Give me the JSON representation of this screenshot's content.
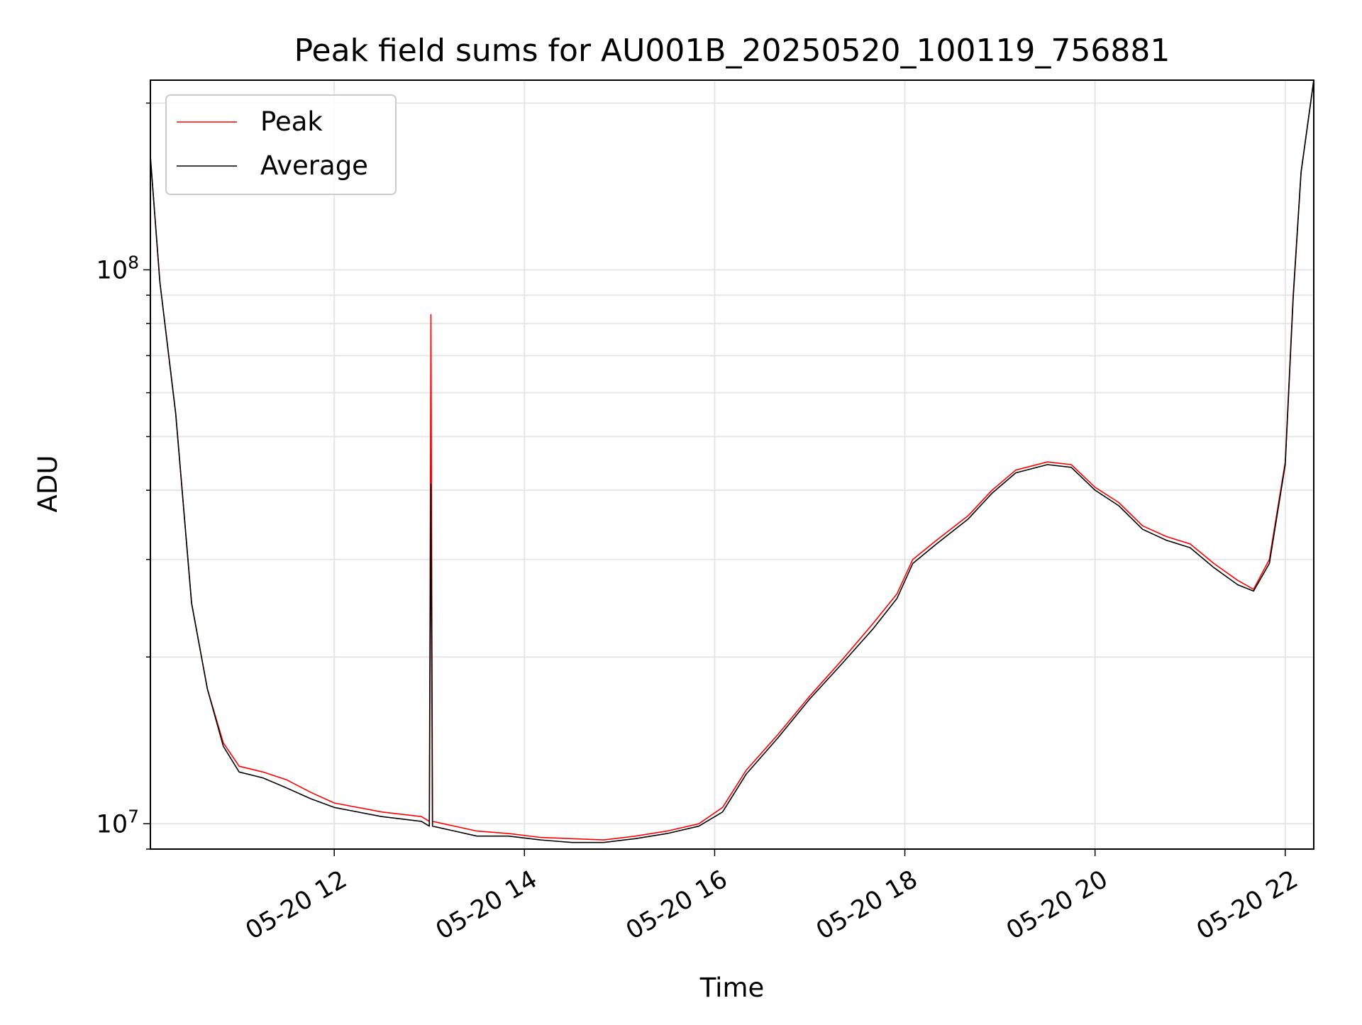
{
  "chart_data": {
    "type": "line",
    "title": "Peak field sums for AU001B_20250520_100119_756881",
    "xlabel": "Time",
    "ylabel": "ADU",
    "y_scale": "log",
    "ylim": [
      9000000.0,
      220000000
    ],
    "xlim": [
      "2025-05-20 10:04",
      "2025-05-20 22:18"
    ],
    "grid": true,
    "legend_position": "top-left",
    "x_ticks": [
      {
        "x": "2025-05-20 12:00",
        "label": "05-20 12"
      },
      {
        "x": "2025-05-20 14:00",
        "label": "05-20 14"
      },
      {
        "x": "2025-05-20 16:00",
        "label": "05-20 16"
      },
      {
        "x": "2025-05-20 18:00",
        "label": "05-20 18"
      },
      {
        "x": "2025-05-20 20:00",
        "label": "05-20 20"
      },
      {
        "x": "2025-05-20 22:00",
        "label": "05-20 22"
      }
    ],
    "y_ticks": [
      {
        "value": 10000000,
        "base": "10",
        "exp": "7"
      },
      {
        "value": 100000000,
        "base": "10",
        "exp": "8"
      }
    ],
    "series": [
      {
        "name": "Peak",
        "color": "#ff0000",
        "x": [
          "2025-05-20 10:04",
          "2025-05-20 10:10",
          "2025-05-20 10:20",
          "2025-05-20 10:30",
          "2025-05-20 10:40",
          "2025-05-20 10:50",
          "2025-05-20 11:00",
          "2025-05-20 11:15",
          "2025-05-20 11:30",
          "2025-05-20 11:45",
          "2025-05-20 12:00",
          "2025-05-20 12:30",
          "2025-05-20 12:55",
          "2025-05-20 13:00",
          "2025-05-20 13:01",
          "2025-05-20 13:02",
          "2025-05-20 13:30",
          "2025-05-20 13:50",
          "2025-05-20 14:10",
          "2025-05-20 14:30",
          "2025-05-20 14:50",
          "2025-05-20 15:10",
          "2025-05-20 15:30",
          "2025-05-20 15:50",
          "2025-05-20 16:05",
          "2025-05-20 16:20",
          "2025-05-20 16:40",
          "2025-05-20 17:00",
          "2025-05-20 17:20",
          "2025-05-20 17:40",
          "2025-05-20 17:55",
          "2025-05-20 18:05",
          "2025-05-20 18:20",
          "2025-05-20 18:40",
          "2025-05-20 18:55",
          "2025-05-20 19:10",
          "2025-05-20 19:30",
          "2025-05-20 19:45",
          "2025-05-20 20:00",
          "2025-05-20 20:15",
          "2025-05-20 20:30",
          "2025-05-20 20:45",
          "2025-05-20 21:00",
          "2025-05-20 21:15",
          "2025-05-20 21:30",
          "2025-05-20 21:40",
          "2025-05-20 21:50",
          "2025-05-20 22:00",
          "2025-05-20 22:05",
          "2025-05-20 22:10",
          "2025-05-20 22:18"
        ],
        "values": [
          160000000,
          95000000,
          55000000,
          25000000,
          17500000,
          14000000,
          12700000,
          12400000,
          12000000,
          11400000,
          10900000,
          10500000,
          10300000,
          10100000,
          83000000,
          10100000,
          9700000,
          9600000,
          9450000,
          9400000,
          9350000,
          9500000,
          9700000,
          10000000,
          10700000,
          12500000,
          14500000,
          17000000,
          19700000,
          23000000,
          26000000,
          30000000,
          32500000,
          36000000,
          40000000,
          43500000,
          45000000,
          44500000,
          40500000,
          38000000,
          34500000,
          33000000,
          32000000,
          29500000,
          27500000,
          26500000,
          30000000,
          45000000,
          90000000,
          150000000,
          220000000
        ]
      },
      {
        "name": "Average",
        "color": "#000000",
        "x": [
          "2025-05-20 10:04",
          "2025-05-20 10:10",
          "2025-05-20 10:20",
          "2025-05-20 10:30",
          "2025-05-20 10:40",
          "2025-05-20 10:50",
          "2025-05-20 11:00",
          "2025-05-20 11:15",
          "2025-05-20 11:30",
          "2025-05-20 11:45",
          "2025-05-20 12:00",
          "2025-05-20 12:30",
          "2025-05-20 12:55",
          "2025-05-20 13:00",
          "2025-05-20 13:01",
          "2025-05-20 13:02",
          "2025-05-20 13:30",
          "2025-05-20 13:50",
          "2025-05-20 14:10",
          "2025-05-20 14:30",
          "2025-05-20 14:50",
          "2025-05-20 15:10",
          "2025-05-20 15:30",
          "2025-05-20 15:50",
          "2025-05-20 16:05",
          "2025-05-20 16:20",
          "2025-05-20 16:40",
          "2025-05-20 17:00",
          "2025-05-20 17:20",
          "2025-05-20 17:40",
          "2025-05-20 17:55",
          "2025-05-20 18:05",
          "2025-05-20 18:20",
          "2025-05-20 18:40",
          "2025-05-20 18:55",
          "2025-05-20 19:10",
          "2025-05-20 19:30",
          "2025-05-20 19:45",
          "2025-05-20 20:00",
          "2025-05-20 20:15",
          "2025-05-20 20:30",
          "2025-05-20 20:45",
          "2025-05-20 21:00",
          "2025-05-20 21:15",
          "2025-05-20 21:30",
          "2025-05-20 21:40",
          "2025-05-20 21:50",
          "2025-05-20 22:00",
          "2025-05-20 22:05",
          "2025-05-20 22:10",
          "2025-05-20 22:18"
        ],
        "values": [
          160000000,
          95000000,
          55000000,
          25000000,
          17500000,
          13800000,
          12400000,
          12100000,
          11600000,
          11100000,
          10700000,
          10300000,
          10100000,
          9900000,
          41000000,
          9900000,
          9500000,
          9500000,
          9350000,
          9250000,
          9250000,
          9400000,
          9600000,
          9900000,
          10500000,
          12300000,
          14300000,
          16800000,
          19400000,
          22500000,
          25500000,
          29500000,
          32000000,
          35500000,
          39500000,
          43000000,
          44500000,
          44000000,
          40000000,
          37500000,
          34000000,
          32500000,
          31500000,
          29000000,
          27000000,
          26300000,
          29500000,
          44500000,
          89000000,
          150000000,
          220000000
        ]
      }
    ]
  }
}
